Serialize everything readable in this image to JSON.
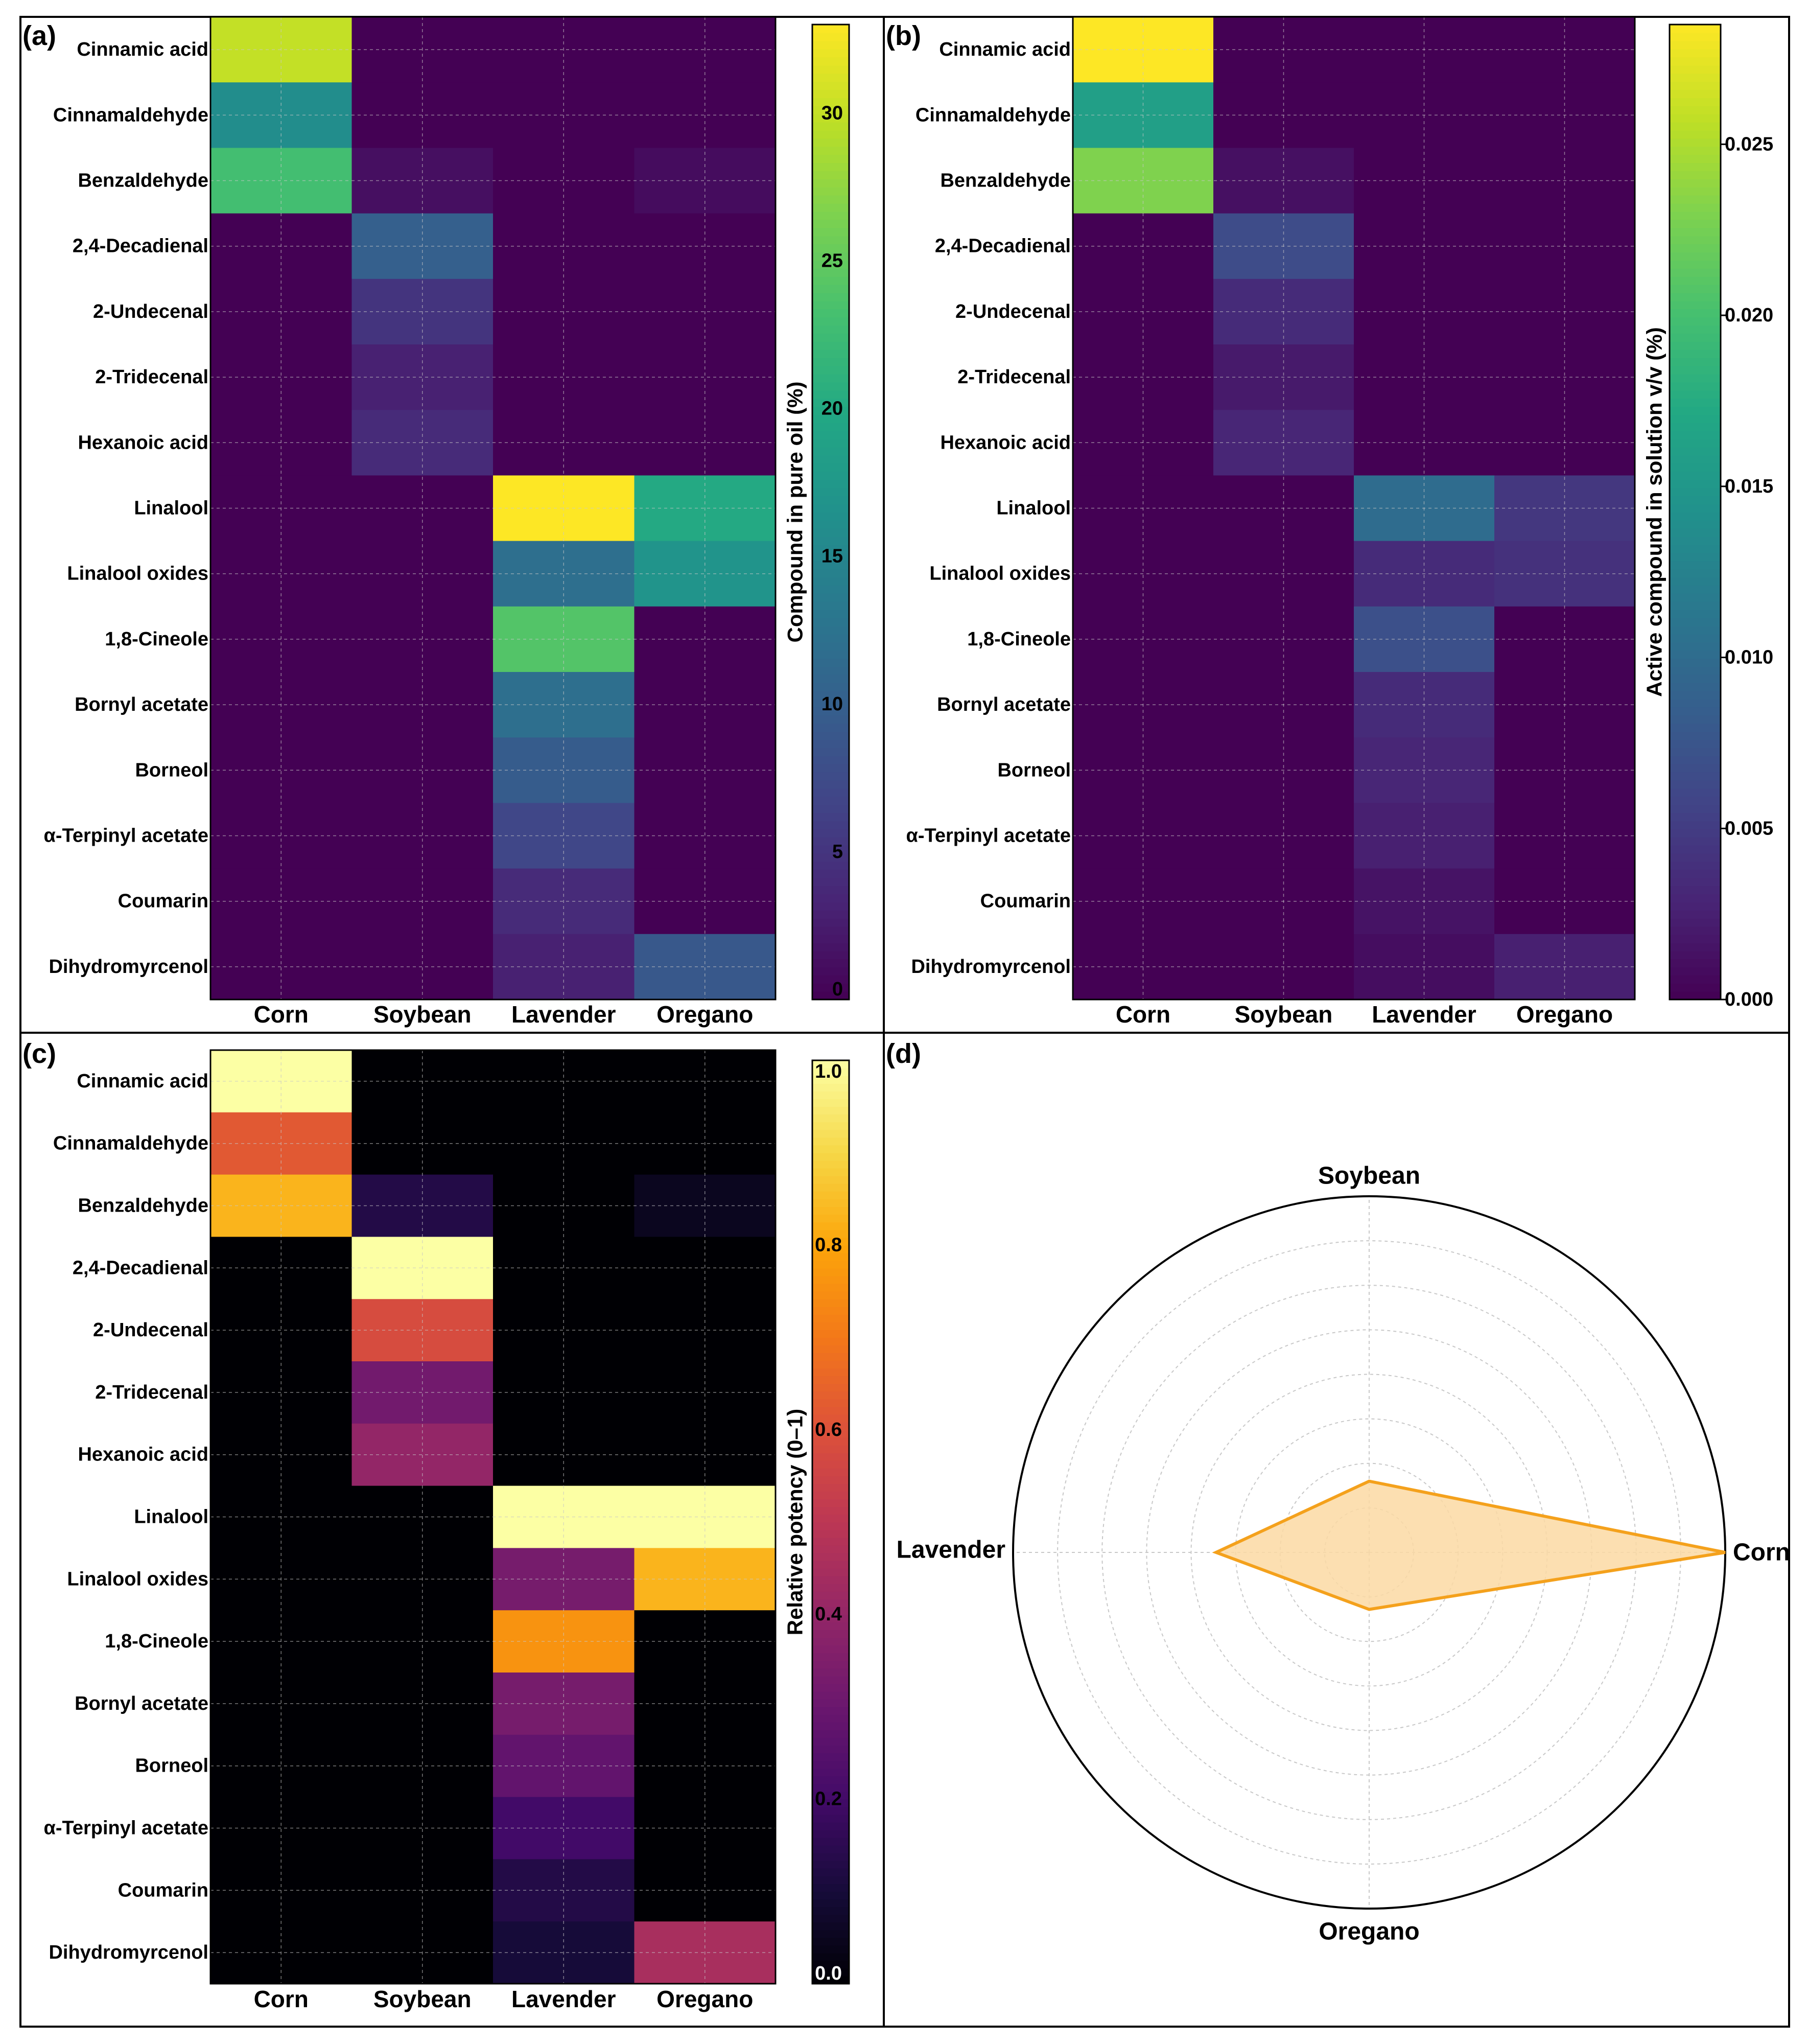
{
  "panel_labels": [
    "(a)",
    "(b)",
    "(c)",
    "(d)"
  ],
  "colors": {
    "radar_line": "#f4a11c",
    "radar_fill": "#fbd9a3",
    "grid": "#c8c8c8"
  },
  "colormaps": {
    "viridis": [
      "#440154",
      "#482475",
      "#414487",
      "#355f8d",
      "#2a788e",
      "#21918c",
      "#22a884",
      "#44bf70",
      "#7ad151",
      "#bddf26",
      "#fde725"
    ],
    "inferno": [
      "#000004",
      "#160b39",
      "#420a68",
      "#6a176e",
      "#932667",
      "#bc3754",
      "#dd513a",
      "#f37819",
      "#fca50a",
      "#f6d746",
      "#fcffa4"
    ]
  },
  "chart_data": [
    {
      "type": "heatmap",
      "panel": "(a)",
      "colormap": "viridis",
      "categories_x": [
        "Corn",
        "Soybean",
        "Lavender",
        "Oregano"
      ],
      "categories_y": [
        "Cinnamic acid",
        "Cinnamaldehyde",
        "Benzaldehyde",
        "2,4-Decadienal",
        "2-Undecenal",
        "2-Tridecenal",
        "Hexanoic acid",
        "Linalool",
        "Linalool oxides",
        "1,8-Cineole",
        "Bornyl acetate",
        "Borneol",
        "α-Terpinyl acetate",
        "Coumarin",
        "Dihydromyrcenol"
      ],
      "values": [
        [
          30.0,
          0,
          0,
          0
        ],
        [
          16.0,
          0,
          0,
          0
        ],
        [
          23.0,
          1.3,
          0,
          1.0
        ],
        [
          0,
          10.0,
          0,
          0
        ],
        [
          0,
          5.0,
          0,
          0
        ],
        [
          0,
          3.0,
          0,
          0
        ],
        [
          0,
          4.0,
          0,
          0
        ],
        [
          0,
          0,
          33.0,
          20.0
        ],
        [
          0,
          0,
          12.0,
          17.0
        ],
        [
          0,
          0,
          24.0,
          0
        ],
        [
          0,
          0,
          12.0,
          0
        ],
        [
          0,
          0,
          9.5,
          0
        ],
        [
          0,
          0,
          7.0,
          0
        ],
        [
          0,
          0,
          4.0,
          0
        ],
        [
          0,
          0,
          3.0,
          9.0
        ]
      ],
      "vmin": 0,
      "vmax": 33,
      "colorbar_label": "Compound in pure oil (%)",
      "colorbar_ticks": [
        "0",
        "5",
        "10",
        "15",
        "20",
        "25",
        "30"
      ],
      "colorbar_tick_values": [
        0,
        5,
        10,
        15,
        20,
        25,
        30
      ]
    },
    {
      "type": "heatmap",
      "panel": "(b)",
      "colormap": "viridis",
      "categories_x": [
        "Corn",
        "Soybean",
        "Lavender",
        "Oregano"
      ],
      "categories_y": [
        "Cinnamic acid",
        "Cinnamaldehyde",
        "Benzaldehyde",
        "2,4-Decadienal",
        "2-Undecenal",
        "2-Tridecenal",
        "Hexanoic acid",
        "Linalool",
        "Linalool oxides",
        "1,8-Cineole",
        "Bornyl acetate",
        "Borneol",
        "α-Terpinyl acetate",
        "Coumarin",
        "Dihydromyrcenol"
      ],
      "values": [
        [
          0.0285,
          0,
          0,
          0
        ],
        [
          0.016,
          0,
          0,
          0
        ],
        [
          0.023,
          0.0012,
          0,
          0
        ],
        [
          0,
          0.0065,
          0,
          0
        ],
        [
          0,
          0.0035,
          0,
          0
        ],
        [
          0,
          0.002,
          0,
          0
        ],
        [
          0,
          0.003,
          0,
          0
        ],
        [
          0,
          0,
          0.01,
          0.0045
        ],
        [
          0,
          0,
          0.0035,
          0.004
        ],
        [
          0,
          0,
          0.007,
          0
        ],
        [
          0,
          0,
          0.0035,
          0
        ],
        [
          0,
          0,
          0.003,
          0
        ],
        [
          0,
          0,
          0.0025,
          0
        ],
        [
          0,
          0,
          0.0015,
          0
        ],
        [
          0,
          0,
          0.001,
          0.0025
        ]
      ],
      "vmin": 0,
      "vmax": 0.0285,
      "colorbar_label": "Active compound in solution v/v (%)",
      "colorbar_ticks": [
        "0.000",
        "0.005",
        "0.010",
        "0.015",
        "0.020",
        "0.025"
      ],
      "colorbar_tick_values": [
        0,
        0.005,
        0.01,
        0.015,
        0.02,
        0.025
      ]
    },
    {
      "type": "heatmap",
      "panel": "(c)",
      "colormap": "inferno",
      "categories_x": [
        "Corn",
        "Soybean",
        "Lavender",
        "Oregano"
      ],
      "categories_y": [
        "Cinnamic acid",
        "Cinnamaldehyde",
        "Benzaldehyde",
        "2,4-Decadienal",
        "2-Undecenal",
        "2-Tridecenal",
        "Hexanoic acid",
        "Linalool",
        "Linalool oxides",
        "1,8-Cineole",
        "Bornyl acetate",
        "Borneol",
        "α-Terpinyl acetate",
        "Coumarin",
        "Dihydromyrcenol"
      ],
      "values": [
        [
          1.0,
          0,
          0,
          0
        ],
        [
          0.62,
          0,
          0,
          0
        ],
        [
          0.83,
          0.13,
          0,
          0.05
        ],
        [
          0,
          1.0,
          0,
          0
        ],
        [
          0,
          0.58,
          0,
          0
        ],
        [
          0,
          0.32,
          0,
          0
        ],
        [
          0,
          0.4,
          0,
          0
        ],
        [
          0,
          0,
          1.0,
          1.0
        ],
        [
          0,
          0,
          0.33,
          0.83
        ],
        [
          0,
          0,
          0.76,
          0
        ],
        [
          0,
          0,
          0.33,
          0
        ],
        [
          0,
          0,
          0.28,
          0
        ],
        [
          0,
          0,
          0.2,
          0
        ],
        [
          0,
          0,
          0.13,
          0
        ],
        [
          0,
          0,
          0.1,
          0.45
        ]
      ],
      "vmin": 0,
      "vmax": 1,
      "colorbar_label": "Relative potency (0–1)",
      "colorbar_ticks": [
        "0.0",
        "0.2",
        "0.4",
        "0.6",
        "0.8",
        "1.0"
      ],
      "colorbar_tick_values": [
        0,
        0.2,
        0.4,
        0.6,
        0.8,
        1.0
      ]
    },
    {
      "type": "radar",
      "panel": "(d)",
      "categories": [
        "Corn",
        "Soybean",
        "Lavender",
        "Oregano"
      ],
      "values": [
        1.0,
        0.2,
        0.43,
        0.16
      ],
      "rmax": 1.0,
      "grid_rings": 7
    }
  ]
}
